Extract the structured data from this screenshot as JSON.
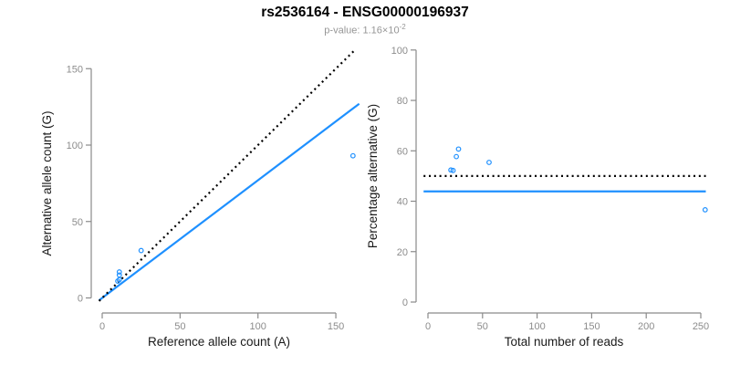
{
  "header": {
    "title": "rs2536164 - ENSG00000196937",
    "subtitle_prefix": "p-value: 1.16×10",
    "subtitle_exponent": "-2"
  },
  "colors": {
    "accent_blue": "#1E90FF",
    "dotted_black": "#000000",
    "axis_gray": "#8a8a8a",
    "tick_label_gray": "#8c8c8c",
    "subtitle_gray": "#969696"
  },
  "chart_data": [
    {
      "type": "scatter",
      "panel": "left",
      "xlabel": "Reference allele count (A)",
      "ylabel": "Alternative allele count (G)",
      "xticks": [
        0,
        50,
        100,
        150
      ],
      "yticks": [
        0,
        50,
        100,
        150
      ],
      "xlim": [
        0,
        165
      ],
      "ylim": [
        0,
        162
      ],
      "grid": false,
      "points": [
        [
          10,
          11
        ],
        [
          11,
          12
        ],
        [
          11,
          15
        ],
        [
          11,
          17
        ],
        [
          25,
          31
        ],
        [
          161,
          93
        ]
      ],
      "lines": [
        {
          "name": "fitted-allelic-ratio",
          "style": "solid",
          "color": "#1E90FF",
          "slope": 0.77,
          "intercept": 0,
          "xrange": [
            -2,
            165
          ]
        },
        {
          "name": "identity-expected",
          "style": "dotted",
          "color": "#000000",
          "slope": 1,
          "intercept": 0,
          "xrange": [
            -2,
            161.5
          ]
        }
      ]
    },
    {
      "type": "scatter",
      "panel": "right",
      "xlabel": "Total number of reads",
      "ylabel": "Percentage alternative (G)",
      "xticks": [
        0,
        50,
        100,
        150,
        200,
        250
      ],
      "yticks": [
        0,
        20,
        40,
        60,
        80,
        100
      ],
      "xlim": [
        0,
        260
      ],
      "ylim": [
        0,
        100
      ],
      "grid": false,
      "points": [
        [
          21,
          52.4
        ],
        [
          23,
          52.2
        ],
        [
          26,
          57.7
        ],
        [
          28,
          60.7
        ],
        [
          56,
          55.4
        ],
        [
          254,
          36.6
        ]
      ],
      "lines": [
        {
          "name": "estimated-percentage",
          "style": "solid",
          "color": "#1E90FF",
          "slope": 0,
          "intercept": 43.9,
          "xrange": [
            -4,
            254.6
          ]
        },
        {
          "name": "expected-50-percent",
          "style": "dotted",
          "color": "#000000",
          "slope": 0,
          "intercept": 50,
          "xrange": [
            -4,
            254.6
          ]
        }
      ]
    }
  ]
}
